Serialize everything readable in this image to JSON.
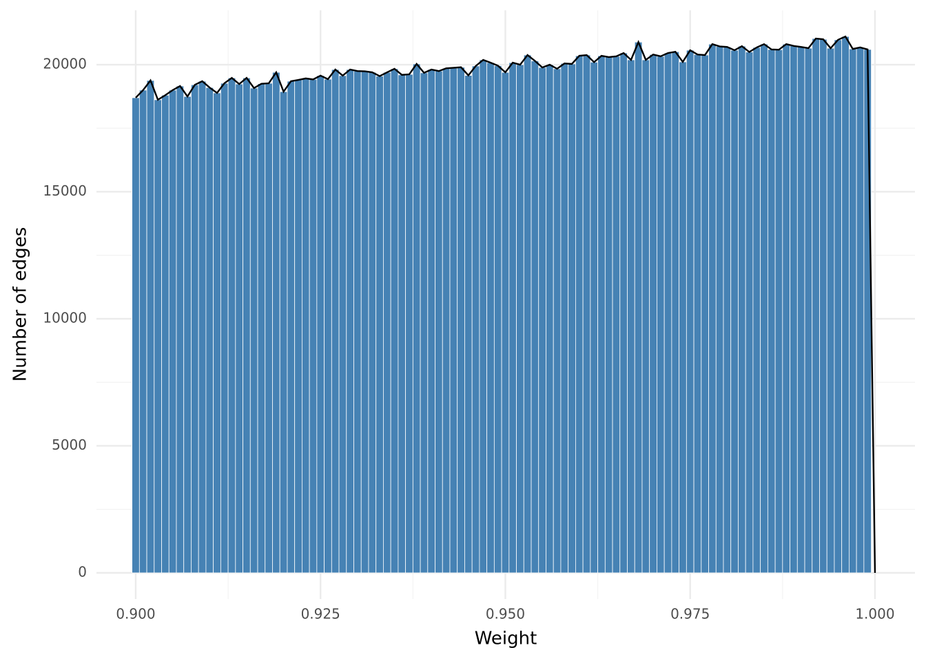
{
  "chart_data": {
    "type": "histogram",
    "xlabel": "Weight",
    "ylabel": "Number of edges",
    "bins": [
      0.8995,
      0.9005,
      0.9015,
      0.9025,
      0.9035,
      0.9045,
      0.9055,
      0.9065,
      0.9075,
      0.9085,
      0.9095,
      0.9105,
      0.9115,
      0.9125,
      0.9135,
      0.9145,
      0.9155,
      0.9165,
      0.9175,
      0.9185,
      0.9195,
      0.9205,
      0.9215,
      0.9225,
      0.9235,
      0.9245,
      0.9255,
      0.9265,
      0.9275,
      0.9285,
      0.9295,
      0.9305,
      0.9315,
      0.9325,
      0.9335,
      0.9345,
      0.9355,
      0.9365,
      0.9375,
      0.9385,
      0.9395,
      0.9405,
      0.9415,
      0.9425,
      0.9435,
      0.9445,
      0.9455,
      0.9465,
      0.9475,
      0.9485,
      0.9495,
      0.9505,
      0.9515,
      0.9525,
      0.9535,
      0.9545,
      0.9555,
      0.9565,
      0.9575,
      0.9585,
      0.9595,
      0.9605,
      0.9615,
      0.9625,
      0.9635,
      0.9645,
      0.9655,
      0.9665,
      0.9675,
      0.9685,
      0.9695,
      0.9705,
      0.9715,
      0.9725,
      0.9735,
      0.9745,
      0.9755,
      0.9765,
      0.9775,
      0.9785,
      0.9795,
      0.9805,
      0.9815,
      0.9825,
      0.9835,
      0.9845,
      0.9855,
      0.9865,
      0.9875,
      0.9885,
      0.9895,
      0.9905,
      0.9915,
      0.9925,
      0.9935,
      0.9945,
      0.9955,
      0.9965,
      0.9975,
      0.9985,
      0.9995
    ],
    "counts": [
      18700,
      19000,
      19380,
      18620,
      18800,
      19000,
      19160,
      18750,
      19210,
      19350,
      19100,
      18890,
      19270,
      19480,
      19240,
      19480,
      19080,
      19250,
      19270,
      19700,
      18940,
      19350,
      19400,
      19460,
      19420,
      19570,
      19430,
      19810,
      19570,
      19810,
      19750,
      19740,
      19700,
      19550,
      19700,
      19840,
      19600,
      19620,
      20030,
      19680,
      19810,
      19750,
      19860,
      19880,
      19900,
      19580,
      19950,
      20190,
      20080,
      19960,
      19700,
      20080,
      20000,
      20380,
      20150,
      19890,
      20000,
      19840,
      20050,
      20030,
      20350,
      20380,
      20100,
      20350,
      20300,
      20330,
      20460,
      20190,
      20890,
      20190,
      20400,
      20330,
      20460,
      20510,
      20110,
      20570,
      20400,
      20380,
      20810,
      20720,
      20700,
      20570,
      20730,
      20500,
      20680,
      20810,
      20600,
      20590,
      20810,
      20740,
      20700,
      20650,
      21030,
      21000,
      20650,
      20980,
      21110,
      20620,
      20680,
      20600
    ],
    "color": "#4682b4",
    "line": {
      "color": "#000000",
      "x": [
        0.9,
        0.901,
        0.902,
        0.903,
        0.904,
        0.905,
        0.906,
        0.907,
        0.908,
        0.909,
        0.91,
        0.911,
        0.912,
        0.913,
        0.914,
        0.915,
        0.916,
        0.917,
        0.918,
        0.919,
        0.92,
        0.921,
        0.922,
        0.923,
        0.924,
        0.925,
        0.926,
        0.927,
        0.928,
        0.929,
        0.93,
        0.931,
        0.932,
        0.933,
        0.934,
        0.935,
        0.936,
        0.937,
        0.938,
        0.939,
        0.94,
        0.941,
        0.942,
        0.943,
        0.944,
        0.945,
        0.946,
        0.947,
        0.948,
        0.949,
        0.95,
        0.951,
        0.952,
        0.953,
        0.954,
        0.955,
        0.956,
        0.957,
        0.958,
        0.959,
        0.96,
        0.961,
        0.962,
        0.963,
        0.964,
        0.965,
        0.966,
        0.967,
        0.968,
        0.969,
        0.97,
        0.971,
        0.972,
        0.973,
        0.974,
        0.975,
        0.976,
        0.977,
        0.978,
        0.979,
        0.98,
        0.981,
        0.982,
        0.983,
        0.984,
        0.985,
        0.986,
        0.987,
        0.988,
        0.989,
        0.99,
        0.991,
        0.992,
        0.993,
        0.994,
        0.995,
        0.996,
        0.997,
        0.998,
        0.999,
        1.0
      ],
      "values": [
        18700,
        19000,
        19380,
        18620,
        18800,
        19000,
        19160,
        18750,
        19210,
        19350,
        19100,
        18890,
        19270,
        19480,
        19240,
        19480,
        19080,
        19250,
        19270,
        19700,
        18940,
        19350,
        19400,
        19460,
        19420,
        19570,
        19430,
        19810,
        19570,
        19810,
        19750,
        19740,
        19700,
        19550,
        19700,
        19840,
        19600,
        19620,
        20030,
        19680,
        19810,
        19750,
        19860,
        19880,
        19900,
        19580,
        19950,
        20190,
        20080,
        19960,
        19700,
        20080,
        20000,
        20380,
        20150,
        19890,
        20000,
        19840,
        20050,
        20030,
        20350,
        20380,
        20100,
        20350,
        20300,
        20330,
        20460,
        20190,
        20890,
        20190,
        20400,
        20330,
        20460,
        20510,
        20110,
        20570,
        20400,
        20380,
        20810,
        20720,
        20700,
        20570,
        20730,
        20500,
        20680,
        20810,
        20600,
        20590,
        20810,
        20740,
        20700,
        20650,
        21030,
        21000,
        20650,
        20980,
        21110,
        20620,
        20680,
        20600,
        0
      ]
    },
    "xlim": [
      0.89469,
      1.00541
    ],
    "ylim": [
      -1030,
      22140
    ],
    "xticks": [
      {
        "value": 0.9,
        "label": "0.900"
      },
      {
        "value": 0.925,
        "label": "0.925"
      },
      {
        "value": 0.95,
        "label": "0.950"
      },
      {
        "value": 0.975,
        "label": "0.975"
      },
      {
        "value": 1.0,
        "label": "1.000"
      }
    ],
    "yticks": [
      0,
      5000,
      10000,
      15000,
      20000
    ],
    "grid": true
  }
}
